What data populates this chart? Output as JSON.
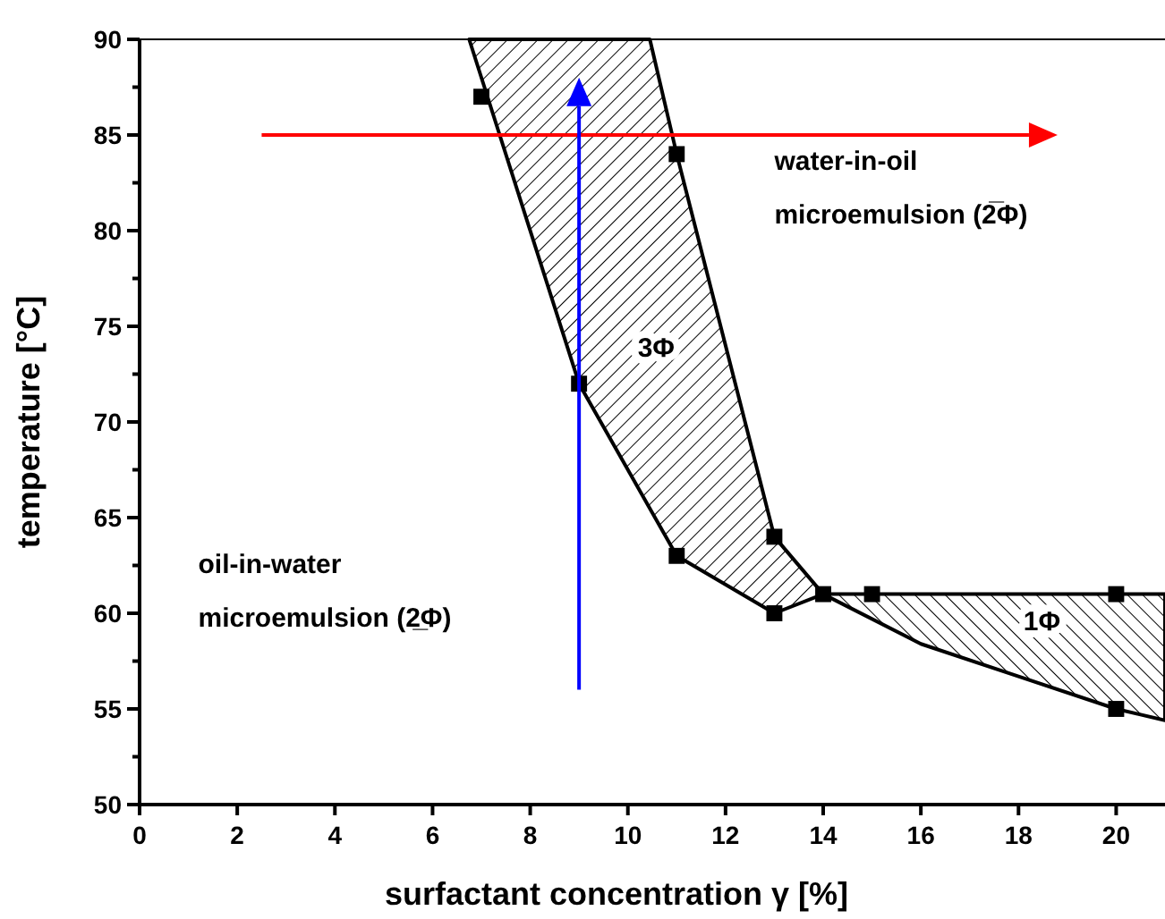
{
  "chart_data": {
    "type": "scatter",
    "xlabel": "surfactant concentration γ [%]",
    "ylabel": "temperature [°C]",
    "xlim": [
      0,
      21
    ],
    "xticks": [
      0,
      2,
      4,
      6,
      8,
      10,
      12,
      14,
      16,
      18,
      20
    ],
    "ylim": [
      50,
      90
    ],
    "yticks": [
      50,
      {
        "value": 52.5,
        "label": null
      },
      55,
      {
        "value": 57.5,
        "label": null
      },
      60,
      {
        "value": 62.5,
        "label": null
      },
      65,
      {
        "value": 67.5,
        "label": null
      },
      70,
      {
        "value": 72.5,
        "label": null
      },
      75,
      {
        "value": 77.5,
        "label": null
      },
      80,
      {
        "value": 82.5,
        "label": null
      },
      85,
      {
        "value": 87.5,
        "label": null
      },
      90
    ],
    "grid": false,
    "series": [
      {
        "type": "area",
        "marker": "none",
        "color": "#000000",
        "x": [
          6.75,
          10.45,
          11,
          13,
          14,
          13,
          11,
          9,
          6.75
        ],
        "values": [
          90,
          90,
          84,
          64,
          61,
          60,
          63,
          72,
          90
        ]
      },
      {
        "type": "area",
        "marker": "none",
        "color": "#000000",
        "x": [
          14,
          21,
          21,
          20,
          18,
          16,
          14
        ],
        "values": [
          61,
          61,
          54.4,
          55,
          56.7,
          58.4,
          61
        ]
      },
      {
        "marker": "square",
        "color": "#000000",
        "x": [
          7,
          9,
          11,
          11,
          13,
          13,
          14,
          15,
          20,
          20
        ],
        "values": [
          87,
          72,
          63,
          84,
          64,
          60,
          61,
          61,
          61,
          55
        ]
      }
    ],
    "annotations": [
      "water-in-oil\nmicroemulsion (2̅Φ)",
      "oil-in-water\nmicroemulsion (2̲Φ)",
      "3Φ",
      "1Φ"
    ]
  }
}
